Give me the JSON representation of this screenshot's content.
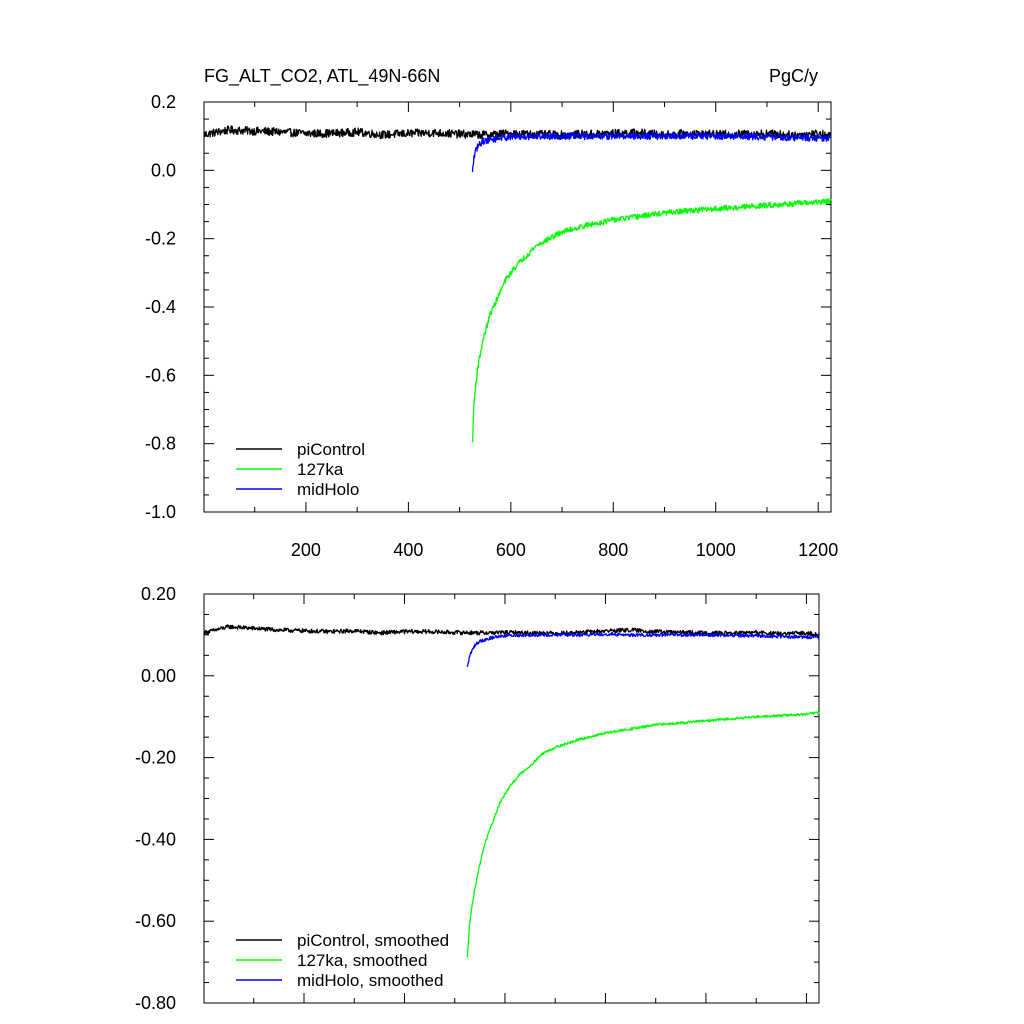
{
  "chart_data": [
    {
      "type": "line",
      "title": "FG_ALT_CO2, ATL_49N-66N",
      "units": "PgC/y",
      "xlim": [
        1,
        1225
      ],
      "ylim": [
        -1.0,
        0.2
      ],
      "x_ticks": [
        200,
        400,
        600,
        800,
        1000,
        1200
      ],
      "x_tick_labels": [
        "200",
        "400",
        "600",
        "800",
        "1000",
        "1200"
      ],
      "y_ticks": [
        0.2,
        0.0,
        -0.2,
        -0.4,
        -0.6,
        -0.8,
        -1.0
      ],
      "y_tick_labels": [
        "0.2",
        "0.0",
        "-0.2",
        "-0.4",
        "-0.6",
        "-0.8",
        "-1.0"
      ],
      "legend_position": "bottom-left",
      "series": [
        {
          "name": "piControl",
          "color": "#000000",
          "x": [
            1,
            50,
            100,
            150,
            200,
            250,
            300,
            350,
            400,
            450,
            500,
            550,
            600,
            650,
            700,
            750,
            800,
            850,
            900,
            950,
            1000,
            1050,
            1100,
            1150,
            1200,
            1225
          ],
          "values": [
            0.105,
            0.118,
            0.115,
            0.112,
            0.108,
            0.108,
            0.112,
            0.104,
            0.108,
            0.11,
            0.106,
            0.104,
            0.108,
            0.105,
            0.104,
            0.106,
            0.108,
            0.11,
            0.104,
            0.108,
            0.105,
            0.106,
            0.108,
            0.103,
            0.108,
            0.1
          ],
          "noise": 0.012
        },
        {
          "name": "127ka",
          "color": "#00ff00",
          "x": [
            525,
            528,
            535,
            545,
            560,
            575,
            590,
            610,
            630,
            650,
            675,
            700,
            750,
            800,
            850,
            900,
            950,
            1000,
            1050,
            1100,
            1150,
            1200,
            1225
          ],
          "values": [
            -0.8,
            -0.68,
            -0.58,
            -0.5,
            -0.42,
            -0.37,
            -0.32,
            -0.28,
            -0.25,
            -0.22,
            -0.2,
            -0.18,
            -0.16,
            -0.145,
            -0.135,
            -0.125,
            -0.118,
            -0.112,
            -0.108,
            -0.102,
            -0.098,
            -0.093,
            -0.09
          ],
          "noise": 0.008
        },
        {
          "name": "midHolo",
          "color": "#0000ff",
          "x": [
            525,
            528,
            535,
            545,
            560,
            580,
            600,
            650,
            700,
            750,
            800,
            850,
            900,
            950,
            1000,
            1050,
            1100,
            1150,
            1200,
            1225
          ],
          "values": [
            -0.01,
            0.04,
            0.07,
            0.085,
            0.09,
            0.095,
            0.098,
            0.1,
            0.1,
            0.1,
            0.1,
            0.1,
            0.1,
            0.1,
            0.1,
            0.099,
            0.098,
            0.096,
            0.095,
            0.094
          ],
          "noise": 0.01
        }
      ]
    },
    {
      "type": "line",
      "xlim": [
        1,
        1225
      ],
      "ylim": [
        -0.8,
        0.2
      ],
      "x_ticks": [
        200,
        400,
        600,
        800,
        1000,
        1200
      ],
      "y_ticks": [
        0.2,
        0.0,
        -0.2,
        -0.4,
        -0.6,
        -0.8
      ],
      "y_tick_labels": [
        "0.20",
        "0.00",
        "-0.20",
        "-0.40",
        "-0.60",
        "-0.80"
      ],
      "legend_position": "bottom-left",
      "series": [
        {
          "name": "piControl, smoothed",
          "color": "#000000",
          "x": [
            1,
            50,
            100,
            150,
            200,
            250,
            300,
            350,
            400,
            450,
            500,
            550,
            600,
            650,
            700,
            750,
            800,
            850,
            900,
            950,
            1000,
            1050,
            1100,
            1150,
            1200,
            1225
          ],
          "values": [
            0.105,
            0.12,
            0.116,
            0.112,
            0.11,
            0.108,
            0.11,
            0.105,
            0.108,
            0.108,
            0.106,
            0.105,
            0.106,
            0.105,
            0.104,
            0.106,
            0.11,
            0.112,
            0.108,
            0.106,
            0.105,
            0.104,
            0.106,
            0.102,
            0.105,
            0.1
          ],
          "noise": 0.005
        },
        {
          "name": "127ka, smoothed",
          "color": "#00ff00",
          "x": [
            525,
            530,
            540,
            550,
            560,
            575,
            590,
            610,
            630,
            650,
            675,
            700,
            750,
            800,
            850,
            900,
            950,
            1000,
            1050,
            1100,
            1150,
            1200,
            1225
          ],
          "values": [
            -0.69,
            -0.6,
            -0.52,
            -0.46,
            -0.41,
            -0.36,
            -0.31,
            -0.27,
            -0.24,
            -0.22,
            -0.19,
            -0.175,
            -0.155,
            -0.14,
            -0.13,
            -0.12,
            -0.115,
            -0.11,
            -0.105,
            -0.1,
            -0.097,
            -0.094,
            -0.09
          ],
          "noise": 0.003
        },
        {
          "name": "midHolo, smoothed",
          "color": "#0000ff",
          "x": [
            525,
            530,
            540,
            550,
            565,
            580,
            600,
            650,
            700,
            750,
            800,
            850,
            900,
            950,
            1000,
            1050,
            1100,
            1150,
            1200,
            1225
          ],
          "values": [
            0.02,
            0.05,
            0.075,
            0.085,
            0.09,
            0.095,
            0.098,
            0.1,
            0.1,
            0.1,
            0.102,
            0.1,
            0.1,
            0.1,
            0.1,
            0.099,
            0.098,
            0.096,
            0.095,
            0.094
          ],
          "noise": 0.004
        }
      ]
    }
  ]
}
